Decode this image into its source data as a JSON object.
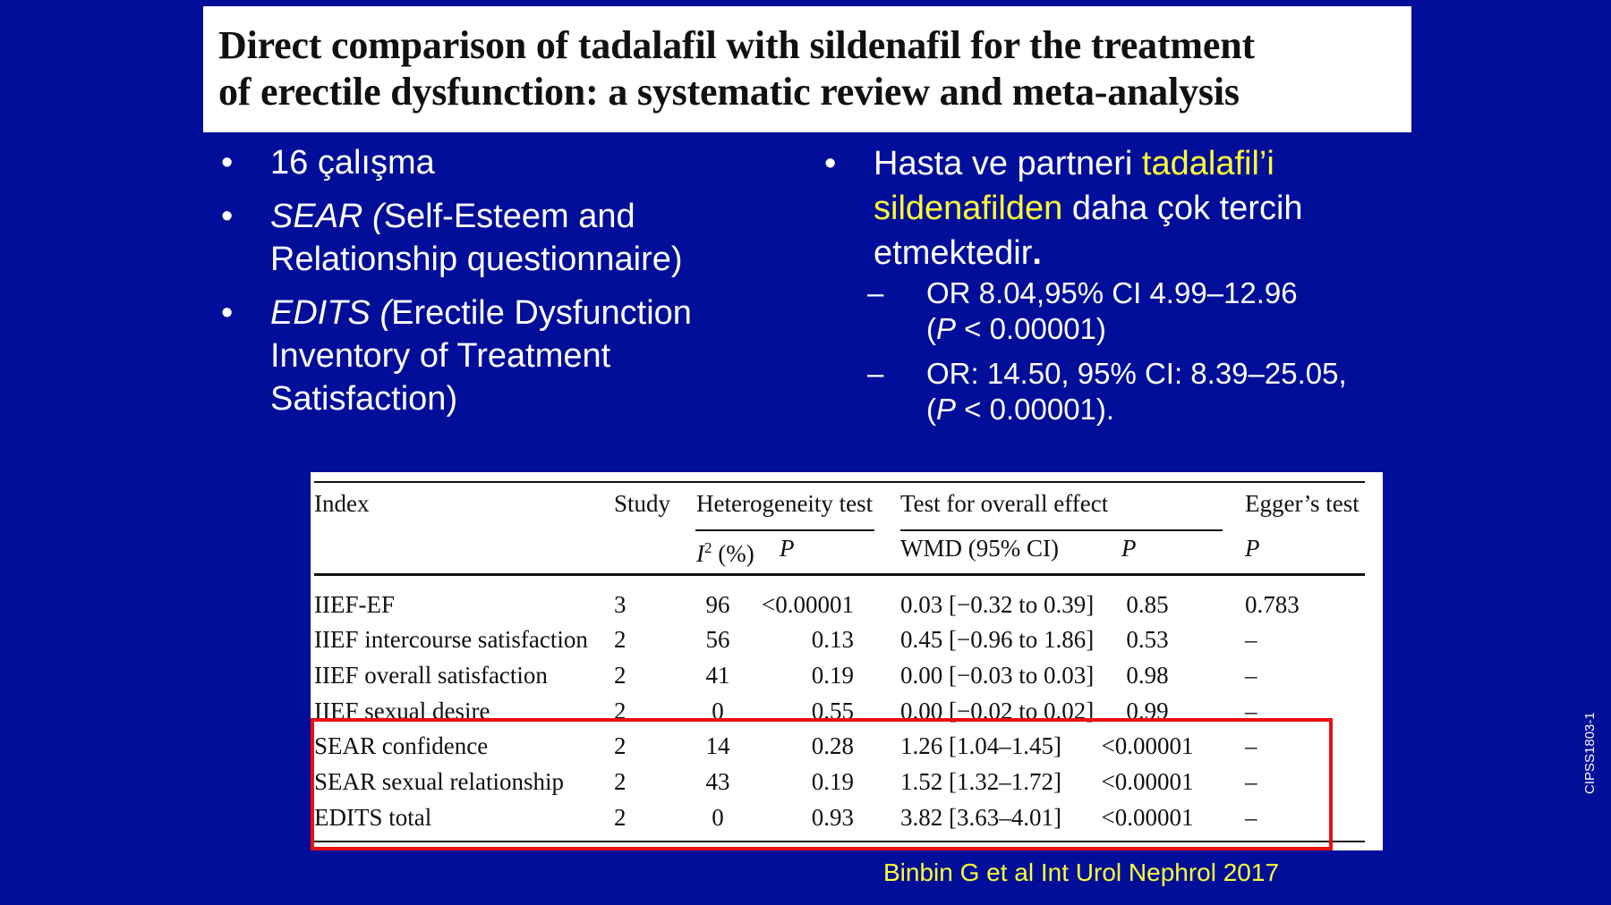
{
  "title": {
    "line1": "Direct comparison of tadalafil with sildenafil for the treatment",
    "line2": "of erectile dysfunction: a systematic review and meta-analysis"
  },
  "left_bullets": {
    "b1": "16 çalışma",
    "b2_abbr": "SEAR (",
    "b2_rest": "Self-Esteem and Relationship questionnaire)",
    "b3_abbr": "EDITS (",
    "b3_rest": "Erectile Dysfunction Inventory of Treatment Satisfaction)"
  },
  "right_bullet": {
    "pre": "Hasta ve partneri ",
    "highlight": "tadalafil’i sildenafilden",
    "post": " daha çok tercih etmektedir",
    "end": ".",
    "sub1_a": "OR 8.04,95% CI 4.99–12.96",
    "sub1_p": "P",
    "sub1_b": " < 0.00001)",
    "sub2_a": "OR: 14.50, 95% CI: 8.39–25.05,",
    "sub2_p": "P",
    "sub2_b": " < 0.00001)."
  },
  "bullet_glyph": "•",
  "dash_glyph": "–",
  "table": {
    "headers": {
      "index": "Index",
      "study": "Study",
      "heterogeneity": "Heterogeneity test",
      "overall": "Test for overall effect",
      "egger": "Egger’s test",
      "i2": "I",
      "i2_sup": "2",
      "i2_unit": " (%)",
      "p1": "P",
      "wmd": "WMD (95% CI)",
      "p2": "P",
      "p3": "P"
    },
    "rows": [
      [
        "IIEF-EF",
        "3",
        "96",
        "<0.00001",
        "0.03 [−0.32 to 0.39]",
        "0.85",
        "0.783"
      ],
      [
        "IIEF intercourse satisfaction",
        "2",
        "56",
        "0.13",
        "0.45 [−0.96 to 1.86]",
        "0.53",
        "–"
      ],
      [
        "IIEF overall satisfaction",
        "2",
        "41",
        "0.19",
        "0.00 [−0.03 to 0.03]",
        "0.98",
        "–"
      ],
      [
        "IIEF sexual desire",
        "2",
        "0",
        "0.55",
        "0.00 [−0.02 to 0.02]",
        "0.99",
        "–"
      ],
      [
        "SEAR confidence",
        "2",
        "14",
        "0.28",
        "1.26 [1.04–1.45]",
        "<0.00001",
        "–"
      ],
      [
        "SEAR sexual relationship",
        "2",
        "43",
        "0.19",
        "1.52 [1.32–1.72]",
        "<0.00001",
        "–"
      ],
      [
        "EDITS total",
        "2",
        "0",
        "0.93",
        "3.82 [3.63–4.01]",
        "<0.00001",
        "–"
      ]
    ]
  },
  "citation": "Binbin G et al Int Urol Nephrol 2017",
  "side_code": "CIPSS1803-1",
  "colors": {
    "background": "#000e99",
    "highlight": "#ffff33",
    "box": "#e81010"
  }
}
